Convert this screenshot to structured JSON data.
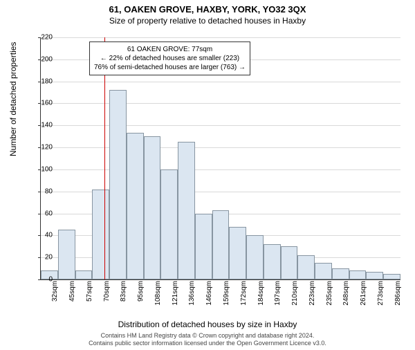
{
  "title": "61, OAKEN GROVE, HAXBY, YORK, YO32 3QX",
  "subtitle": "Size of property relative to detached houses in Haxby",
  "y_axis_label": "Number of detached properties",
  "x_axis_label": "Distribution of detached houses by size in Haxby",
  "copyright_line1": "Contains HM Land Registry data © Crown copyright and database right 2024.",
  "copyright_line2": "Contains public sector information licensed under the Open Government Licence v3.0.",
  "chart": {
    "type": "histogram",
    "ylim": [
      0,
      220
    ],
    "ytick_step": 20,
    "bar_fill": "#dbe6f1",
    "bar_border": "#8795a1",
    "grid_color": "#d9d9d9",
    "background_color": "#ffffff",
    "marker_color": "#cc0000",
    "marker_x_index": 3.7,
    "xticks": [
      "32sqm",
      "45sqm",
      "57sqm",
      "70sqm",
      "83sqm",
      "95sqm",
      "108sqm",
      "121sqm",
      "136sqm",
      "146sqm",
      "159sqm",
      "172sqm",
      "184sqm",
      "197sqm",
      "210sqm",
      "223sqm",
      "235sqm",
      "248sqm",
      "261sqm",
      "273sqm",
      "286sqm"
    ],
    "values": [
      8,
      45,
      8,
      82,
      172,
      133,
      130,
      100,
      125,
      60,
      63,
      48,
      40,
      32,
      30,
      22,
      15,
      10,
      8,
      7,
      5
    ],
    "title_fontsize": 13,
    "label_fontsize": 12,
    "tick_fontsize": 10
  },
  "annotation": {
    "line1": "61 OAKEN GROVE: 77sqm",
    "line2": "← 22% of detached houses are smaller (223)",
    "line3": "76% of semi-detached houses are larger (763) →"
  }
}
